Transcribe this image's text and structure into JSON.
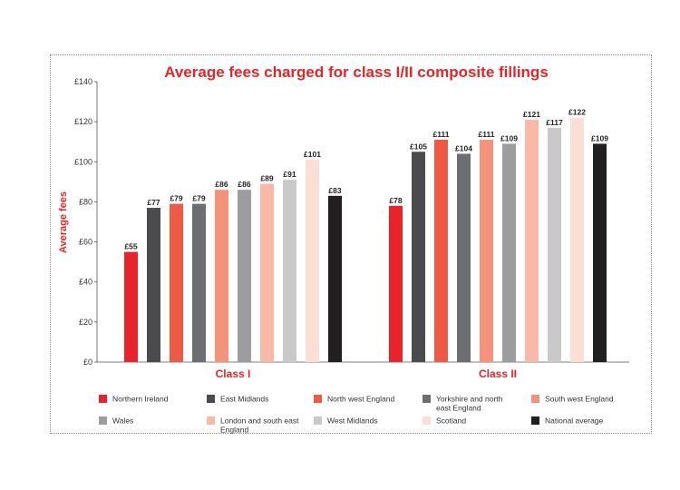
{
  "chart_data": {
    "type": "bar",
    "title": "Average fees charged for class I/II composite fillings",
    "xlabel": "",
    "ylabel": "Average fees",
    "ylim": [
      0,
      140
    ],
    "yticks": [
      "£0",
      "£20",
      "£40",
      "£60",
      "£80",
      "£100",
      "£120",
      "£140"
    ],
    "grid": false,
    "legend_position": "bottom",
    "categories": [
      "Class I",
      "Class II"
    ],
    "series": [
      {
        "name": "Northern Ireland",
        "color": "#e8232a",
        "values": [
          55,
          78
        ],
        "labels": [
          "£55",
          "£78"
        ]
      },
      {
        "name": "East Midlands",
        "color": "#4b4b4d",
        "values": [
          77,
          105
        ],
        "labels": [
          "£77",
          "£105"
        ]
      },
      {
        "name": "North west England",
        "color": "#ef5a45",
        "values": [
          79,
          111
        ],
        "labels": [
          "£79",
          "£111"
        ]
      },
      {
        "name": "Yorkshire and north east England",
        "color": "#6d6e71",
        "values": [
          79,
          104
        ],
        "labels": [
          "£79",
          "£104"
        ]
      },
      {
        "name": "South west England",
        "color": "#f4937a",
        "values": [
          86,
          111
        ],
        "labels": [
          "£86",
          "£111"
        ]
      },
      {
        "name": "Wales",
        "color": "#9d9d9f",
        "values": [
          86,
          109
        ],
        "labels": [
          "£86",
          "£109"
        ]
      },
      {
        "name": "London and south east England",
        "color": "#f8b9a6",
        "values": [
          89,
          121
        ],
        "labels": [
          "£89",
          "£121"
        ]
      },
      {
        "name": "West Midlands",
        "color": "#c9c9ca",
        "values": [
          91,
          117
        ],
        "labels": [
          "£91",
          "£117"
        ]
      },
      {
        "name": "Scotland",
        "color": "#fbdfd5",
        "values": [
          101,
          122
        ],
        "labels": [
          "£101",
          "£122"
        ]
      },
      {
        "name": "National average",
        "color": "#231f20",
        "values": [
          83,
          109
        ],
        "labels": [
          "£83",
          "£109"
        ]
      }
    ]
  }
}
